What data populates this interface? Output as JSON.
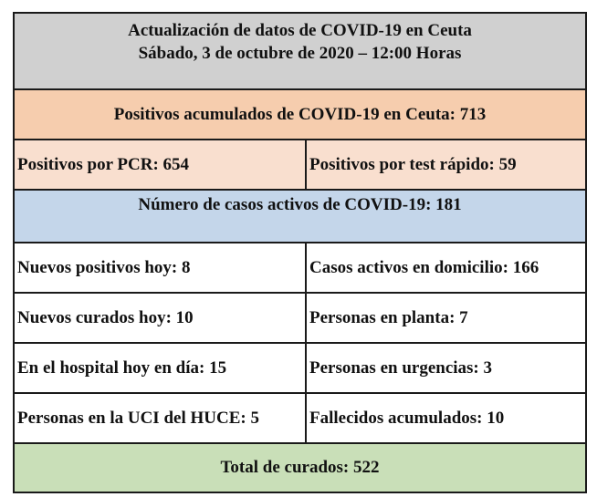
{
  "header": {
    "title": "Actualización de datos de COVID-19 en Ceuta",
    "date": "Sábado, 3 de octubre de 2020 – 12:00 Horas"
  },
  "colors": {
    "header_bg": "#d0d0d0",
    "positive_total_bg": "#f6cdae",
    "positive_split_bg": "#f9dfcf",
    "active_bg": "#c4d6ea",
    "cured_bg": "#c9dfb8"
  },
  "positives": {
    "total": "Positivos acumulados de COVID-19 en Ceuta:  713",
    "pcr": "Positivos por PCR:  654",
    "rapid": "Positivos por test rápido:  59"
  },
  "active": {
    "label": "Número de casos activos de COVID-19:   181"
  },
  "stats": [
    {
      "left": "Nuevos positivos hoy: 8",
      "right": "Casos activos en domicilio: 166"
    },
    {
      "left": "Nuevos curados hoy: 10",
      "right": "Personas en planta: 7"
    },
    {
      "left": "En el hospital hoy en día: 15",
      "right": "Personas en urgencias: 3"
    },
    {
      "left": "Personas en la UCI del HUCE: 5",
      "right": "Fallecidos acumulados: 10"
    }
  ],
  "cured": {
    "total": "Total de curados: 522"
  }
}
